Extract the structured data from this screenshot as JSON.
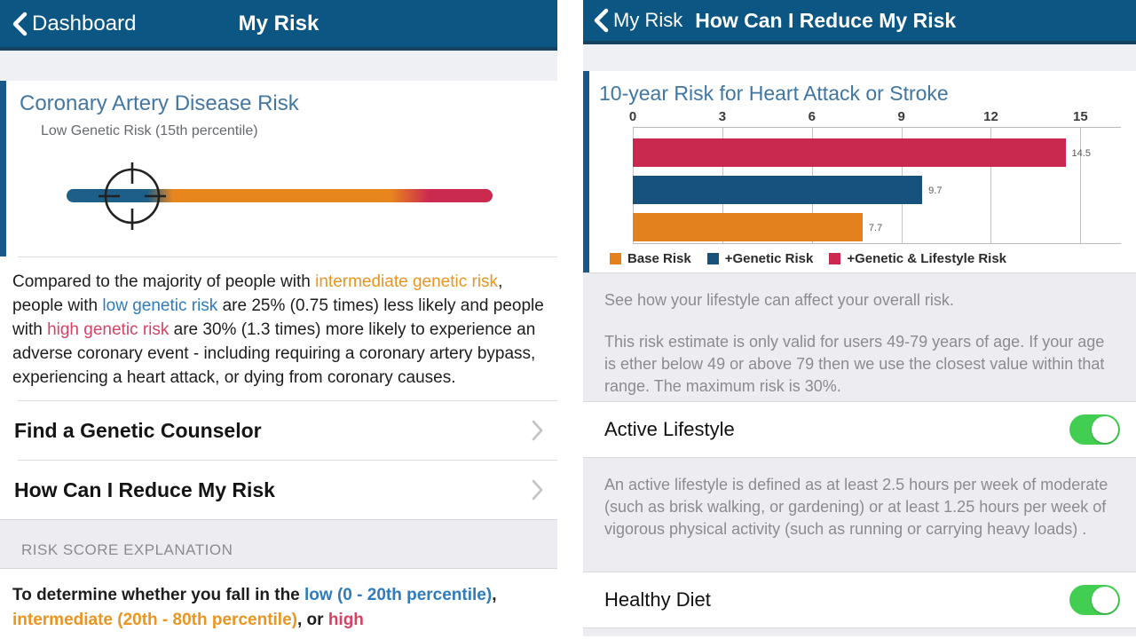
{
  "palette": {
    "blue": "#2e7bbd",
    "orange": "#e9951f",
    "red": "#d44363",
    "header_bg": "#0b5683",
    "accent_stripe": "#175988",
    "toggle_green": "#41ce51"
  },
  "left_screen": {
    "header": {
      "back_label": "Dashboard",
      "title": "My Risk"
    },
    "card": {
      "title": "Coronary Artery Disease Risk",
      "subtitle": "Low Genetic Risk (15th percentile)",
      "gauge": {
        "marker_percent": 15.5,
        "gradient_stops": [
          [
            "#1d5f88",
            0
          ],
          [
            "#1d5f88",
            19
          ],
          [
            "#e8861e",
            25
          ],
          [
            "#e8861e",
            76
          ],
          [
            "#cb2a50",
            85
          ],
          [
            "#cb2a50",
            100
          ]
        ]
      }
    },
    "paragraph_segments": [
      {
        "text": "Compared to the majority of people with "
      },
      {
        "text": "intermediate genetic risk",
        "color": "orange"
      },
      {
        "text": ", people with "
      },
      {
        "text": "low genetic risk",
        "color": "blue"
      },
      {
        "text": " are 25% (0.75 times) less likely and people with "
      },
      {
        "text": "high genetic risk",
        "color": "red"
      },
      {
        "text": " are 30% (1.3 times) more likely to experience an adverse coronary event - including requiring a coronary artery bypass, experiencing a heart attack, or dying from coronary causes."
      }
    ],
    "menu_items": [
      {
        "label": "Find a Genetic Counselor"
      },
      {
        "label": "How Can I Reduce My Risk"
      }
    ],
    "section_header": "RISK SCORE EXPLANATION",
    "explanation_segments": [
      {
        "text": "To determine whether you fall in the "
      },
      {
        "text": "low (0 - 20th percentile)",
        "color": "blue"
      },
      {
        "text": ", "
      },
      {
        "text": "intermediate (20th - 80th percentile)",
        "color": "orange"
      },
      {
        "text": ", or "
      },
      {
        "text": "high",
        "color": "red"
      }
    ]
  },
  "right_screen": {
    "header": {
      "back_label": "My Risk",
      "title": "How Can I Reduce My Risk"
    },
    "chart_data": {
      "type": "bar",
      "orientation": "horizontal",
      "title": "10-year Risk for Heart Attack or Stroke",
      "categories": [
        "+Genetic & Lifestyle Risk",
        "+Genetic Risk",
        "Base Risk"
      ],
      "values": [
        14.5,
        9.7,
        7.7
      ],
      "value_labels": [
        "14.5",
        "9.7",
        "7.7"
      ],
      "bar_colors": [
        "#c9294f",
        "#17527c",
        "#e2811e"
      ],
      "xlim": [
        0,
        15
      ],
      "ticks": [
        "0",
        "3",
        "6",
        "9",
        "12",
        "15"
      ],
      "grid": true,
      "legend": {
        "position": "bottom",
        "items": [
          {
            "label": "Base Risk",
            "color": "#e2811e"
          },
          {
            "label": "+Genetic Risk",
            "color": "#17527c"
          },
          {
            "label": "+Genetic & Lifestyle Risk",
            "color": "#c9294f"
          }
        ]
      }
    },
    "info_panel": {
      "line1": "See how your lifestyle can affect your overall risk.",
      "line2": "This risk estimate is only valid for users 49-79 years of age. If your age is ether below 49 or above 79 then we use the closest value within that range. The maximum risk is 30%."
    },
    "toggles": [
      {
        "label": "Active Lifestyle",
        "state": "on",
        "description": "An active lifestyle is defined as at least 2.5 hours per week of moderate (such as brisk walking, or gardening) or at least 1.25 hours per week of vigorous physical activity (such as running or carrying heavy loads) ."
      },
      {
        "label": "Healthy Diet",
        "state": "on"
      }
    ]
  }
}
